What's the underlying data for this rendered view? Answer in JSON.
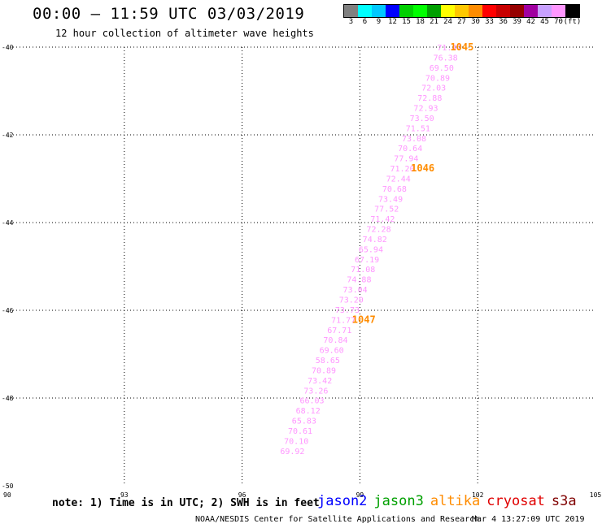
{
  "header": {
    "title": "00:00 – 11:59 UTC 03/03/2019",
    "subtitle": "12 hour collection of altimeter wave heights"
  },
  "legend": {
    "colors": [
      "#808080",
      "#00ffff",
      "#00c8ff",
      "#0000ff",
      "#00d000",
      "#00ff00",
      "#00a000",
      "#ffff00",
      "#ffc800",
      "#ff8c00",
      "#ff0000",
      "#c80000",
      "#960000",
      "#a000a0",
      "#c8a0ff",
      "#ff96ff",
      "#000000"
    ],
    "labels": [
      "3",
      "6",
      "9",
      "12",
      "15",
      "18",
      "21",
      "24",
      "27",
      "30",
      "33",
      "36",
      "39",
      "42",
      "45",
      "70",
      "(ft)"
    ]
  },
  "chart_data": {
    "type": "scatter",
    "xlim": [
      90,
      105
    ],
    "ylim": [
      -50,
      -40
    ],
    "x_ticks": [
      90,
      93,
      96,
      99,
      102,
      105
    ],
    "x_tick_labels": [
      "90",
      "93",
      "96",
      "99",
      "102",
      "105"
    ],
    "y_ticks": [
      -40,
      -42,
      -44,
      -46,
      -48,
      -50
    ],
    "y_tick_labels": [
      "-40",
      "-42",
      "-44",
      "-46",
      "-48",
      "-50"
    ],
    "grid": true,
    "grid_x": [
      93,
      96,
      99,
      102
    ],
    "grid_y": [
      -42,
      -44,
      -46,
      -48
    ],
    "point_color": "#ff96ff",
    "points": [
      {
        "lon": 101.28,
        "lat": -40.0,
        "swh": "71.47"
      },
      {
        "lon": 101.18,
        "lat": -40.23,
        "swh": "76.38"
      },
      {
        "lon": 101.08,
        "lat": -40.46,
        "swh": "69.50"
      },
      {
        "lon": 100.98,
        "lat": -40.69,
        "swh": "70.89"
      },
      {
        "lon": 100.88,
        "lat": -40.92,
        "swh": "72.03"
      },
      {
        "lon": 100.78,
        "lat": -41.15,
        "swh": "72.88"
      },
      {
        "lon": 100.68,
        "lat": -41.38,
        "swh": "72.93"
      },
      {
        "lon": 100.58,
        "lat": -41.61,
        "swh": "73.50"
      },
      {
        "lon": 100.48,
        "lat": -41.84,
        "swh": "71.51"
      },
      {
        "lon": 100.38,
        "lat": -42.07,
        "swh": "73.08"
      },
      {
        "lon": 100.28,
        "lat": -42.3,
        "swh": "70.64"
      },
      {
        "lon": 100.18,
        "lat": -42.53,
        "swh": "77.94"
      },
      {
        "lon": 100.08,
        "lat": -42.76,
        "swh": "71.20"
      },
      {
        "lon": 99.98,
        "lat": -42.99,
        "swh": "72.44"
      },
      {
        "lon": 99.88,
        "lat": -43.22,
        "swh": "70.68"
      },
      {
        "lon": 99.78,
        "lat": -43.45,
        "swh": "73.49"
      },
      {
        "lon": 99.68,
        "lat": -43.68,
        "swh": "77.52"
      },
      {
        "lon": 99.58,
        "lat": -43.91,
        "swh": "71.42"
      },
      {
        "lon": 99.48,
        "lat": -44.14,
        "swh": "72.28"
      },
      {
        "lon": 99.38,
        "lat": -44.37,
        "swh": "74.82"
      },
      {
        "lon": 99.28,
        "lat": -44.6,
        "swh": "65.94"
      },
      {
        "lon": 99.18,
        "lat": -44.83,
        "swh": "67.19"
      },
      {
        "lon": 99.08,
        "lat": -45.06,
        "swh": "71.08"
      },
      {
        "lon": 98.98,
        "lat": -45.29,
        "swh": "74.88"
      },
      {
        "lon": 98.88,
        "lat": -45.52,
        "swh": "73.04"
      },
      {
        "lon": 98.78,
        "lat": -45.75,
        "swh": "73.20"
      },
      {
        "lon": 98.68,
        "lat": -45.98,
        "swh": "73.73"
      },
      {
        "lon": 98.58,
        "lat": -46.21,
        "swh": "71.77"
      },
      {
        "lon": 98.48,
        "lat": -46.44,
        "swh": "67.71"
      },
      {
        "lon": 98.38,
        "lat": -46.67,
        "swh": "70.84"
      },
      {
        "lon": 98.28,
        "lat": -46.9,
        "swh": "69.60"
      },
      {
        "lon": 98.18,
        "lat": -47.13,
        "swh": "58.65"
      },
      {
        "lon": 98.08,
        "lat": -47.36,
        "swh": "70.89"
      },
      {
        "lon": 97.98,
        "lat": -47.59,
        "swh": "73.42"
      },
      {
        "lon": 97.88,
        "lat": -47.82,
        "swh": "73.26"
      },
      {
        "lon": 97.78,
        "lat": -48.05,
        "swh": "66.03"
      },
      {
        "lon": 97.68,
        "lat": -48.28,
        "swh": "68.12"
      },
      {
        "lon": 97.58,
        "lat": -48.51,
        "swh": "65.83"
      },
      {
        "lon": 97.48,
        "lat": -48.74,
        "swh": "70.61"
      },
      {
        "lon": 97.38,
        "lat": -48.97,
        "swh": "70.10"
      },
      {
        "lon": 97.28,
        "lat": -49.2,
        "swh": "69.92"
      }
    ],
    "time_color": "#ff8c00",
    "time_labels": [
      {
        "lon": 101.6,
        "lat": -40.0,
        "text": "1045"
      },
      {
        "lon": 100.6,
        "lat": -42.76,
        "text": "1046"
      },
      {
        "lon": 99.1,
        "lat": -46.21,
        "text": "1047"
      }
    ]
  },
  "footer": {
    "note": "note: 1) Time is in UTC; 2) SWH is in feet",
    "satellites": [
      {
        "name": "jason2",
        "color": "#0000ff"
      },
      {
        "name": "jason3",
        "color": "#00a000"
      },
      {
        "name": "altika",
        "color": "#ff8c00"
      },
      {
        "name": "cryosat",
        "color": "#e00000"
      },
      {
        "name": "s3a",
        "color": "#800000"
      }
    ],
    "credit": "NOAA/NESDIS Center for Satellite Applications and Research",
    "timestamp": "Mar  4 13:27:09 UTC 2019"
  }
}
